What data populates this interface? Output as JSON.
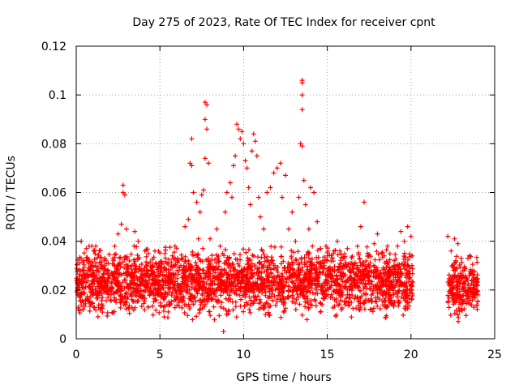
{
  "chart_data": {
    "type": "scatter",
    "title": "Day 275 of 2023, Rate Of TEC Index for receiver cpnt",
    "xlabel": "GPS time / hours",
    "ylabel": "ROTI / TECUs",
    "xlim": [
      0,
      25
    ],
    "ylim": [
      0,
      0.12
    ],
    "xticks": [
      "0",
      "5",
      "10",
      "15",
      "20",
      "25"
    ],
    "yticks": [
      "0",
      "0.02",
      "0.04",
      "0.06",
      "0.08",
      "0.1",
      "0.12"
    ],
    "grid": true,
    "marker": "+",
    "color": "#ff0000",
    "series": [
      {
        "values": [
          [
            0.1,
            0.018
          ],
          [
            0.2,
            0.031
          ],
          [
            0.3,
            0.04
          ],
          [
            0.4,
            0.012
          ],
          [
            0.5,
            0.025
          ],
          [
            0.6,
            0.037
          ],
          [
            0.8,
            0.015
          ],
          [
            1.0,
            0.028
          ],
          [
            1.1,
            0.036
          ],
          [
            1.3,
            0.009
          ],
          [
            1.5,
            0.022
          ],
          [
            1.7,
            0.033
          ],
          [
            1.9,
            0.017
          ],
          [
            2.1,
            0.027
          ],
          [
            2.3,
            0.038
          ],
          [
            2.5,
            0.043
          ],
          [
            2.7,
            0.047
          ],
          [
            2.8,
            0.063
          ],
          [
            2.8,
            0.06
          ],
          [
            2.9,
            0.059
          ],
          [
            3.0,
            0.045
          ],
          [
            3.1,
            0.03
          ],
          [
            3.3,
            0.018
          ],
          [
            3.5,
            0.044
          ],
          [
            3.7,
            0.04
          ],
          [
            3.9,
            0.025
          ],
          [
            4.1,
            0.036
          ],
          [
            4.3,
            0.013
          ],
          [
            4.5,
            0.028
          ],
          [
            4.7,
            0.036
          ],
          [
            4.9,
            0.02
          ],
          [
            5.1,
            0.031
          ],
          [
            5.3,
            0.035
          ],
          [
            5.5,
            0.011
          ],
          [
            5.7,
            0.03
          ],
          [
            5.9,
            0.038
          ],
          [
            6.1,
            0.022
          ],
          [
            6.3,
            0.033
          ],
          [
            6.5,
            0.046
          ],
          [
            6.7,
            0.049
          ],
          [
            6.8,
            0.072
          ],
          [
            6.9,
            0.071
          ],
          [
            6.9,
            0.082
          ],
          [
            7.0,
            0.06
          ],
          [
            7.2,
            0.056
          ],
          [
            7.3,
            0.041
          ],
          [
            7.4,
            0.052
          ],
          [
            7.5,
            0.059
          ],
          [
            7.6,
            0.061
          ],
          [
            7.7,
            0.074
          ],
          [
            7.7,
            0.097
          ],
          [
            7.8,
            0.096
          ],
          [
            7.7,
            0.09
          ],
          [
            7.8,
            0.086
          ],
          [
            7.9,
            0.072
          ],
          [
            8.0,
            0.041
          ],
          [
            8.2,
            0.028
          ],
          [
            8.4,
            0.045
          ],
          [
            8.6,
            0.038
          ],
          [
            8.8,
            0.003
          ],
          [
            8.9,
            0.052
          ],
          [
            9.0,
            0.06
          ],
          [
            9.2,
            0.064
          ],
          [
            9.3,
            0.058
          ],
          [
            9.4,
            0.071
          ],
          [
            9.5,
            0.075
          ],
          [
            9.6,
            0.088
          ],
          [
            9.7,
            0.086
          ],
          [
            9.8,
            0.082
          ],
          [
            9.9,
            0.085
          ],
          [
            10.0,
            0.08
          ],
          [
            10.1,
            0.073
          ],
          [
            10.2,
            0.07
          ],
          [
            10.3,
            0.062
          ],
          [
            10.4,
            0.055
          ],
          [
            10.5,
            0.077
          ],
          [
            10.6,
            0.084
          ],
          [
            10.7,
            0.081
          ],
          [
            10.8,
            0.075
          ],
          [
            10.9,
            0.058
          ],
          [
            11.0,
            0.05
          ],
          [
            11.2,
            0.045
          ],
          [
            11.4,
            0.06
          ],
          [
            11.6,
            0.062
          ],
          [
            11.8,
            0.068
          ],
          [
            12.0,
            0.07
          ],
          [
            12.2,
            0.072
          ],
          [
            12.3,
            0.058
          ],
          [
            12.5,
            0.067
          ],
          [
            12.7,
            0.045
          ],
          [
            12.9,
            0.052
          ],
          [
            13.1,
            0.04
          ],
          [
            13.3,
            0.058
          ],
          [
            13.4,
            0.08
          ],
          [
            13.5,
            0.079
          ],
          [
            13.5,
            0.094
          ],
          [
            13.5,
            0.1
          ],
          [
            13.5,
            0.106
          ],
          [
            13.5,
            0.105
          ],
          [
            13.6,
            0.065
          ],
          [
            13.7,
            0.055
          ],
          [
            13.9,
            0.045
          ],
          [
            14.0,
            0.062
          ],
          [
            14.2,
            0.06
          ],
          [
            14.4,
            0.048
          ],
          [
            14.6,
            0.037
          ],
          [
            14.8,
            0.029
          ],
          [
            15.0,
            0.034
          ],
          [
            15.2,
            0.026
          ],
          [
            15.4,
            0.036
          ],
          [
            15.6,
            0.04
          ],
          [
            15.8,
            0.022
          ],
          [
            16.0,
            0.033
          ],
          [
            16.2,
            0.037
          ],
          [
            16.4,
            0.025
          ],
          [
            16.6,
            0.03
          ],
          [
            16.8,
            0.038
          ],
          [
            17.0,
            0.046
          ],
          [
            17.2,
            0.056
          ],
          [
            17.4,
            0.035
          ],
          [
            17.6,
            0.028
          ],
          [
            17.8,
            0.039
          ],
          [
            18.0,
            0.043
          ],
          [
            18.2,
            0.027
          ],
          [
            18.4,
            0.034
          ],
          [
            18.6,
            0.038
          ],
          [
            18.8,
            0.021
          ],
          [
            19.0,
            0.032
          ],
          [
            19.2,
            0.038
          ],
          [
            19.4,
            0.044
          ],
          [
            19.6,
            0.04
          ],
          [
            19.8,
            0.046
          ],
          [
            20.0,
            0.042
          ],
          [
            22.2,
            0.042
          ],
          [
            22.4,
            0.036
          ],
          [
            22.6,
            0.041
          ],
          [
            22.8,
            0.039
          ],
          [
            23.0,
            0.033
          ],
          [
            23.2,
            0.029
          ],
          [
            23.4,
            0.033
          ],
          [
            23.6,
            0.027
          ],
          [
            23.8,
            0.022
          ],
          [
            24.0,
            0.018
          ]
        ]
      }
    ],
    "dense_bands": [
      {
        "x": [
          0.0,
          20.1
        ],
        "y": [
          0.006,
          0.034
        ]
      },
      {
        "x": [
          22.2,
          24.0
        ],
        "y": [
          0.006,
          0.031
        ]
      }
    ]
  }
}
